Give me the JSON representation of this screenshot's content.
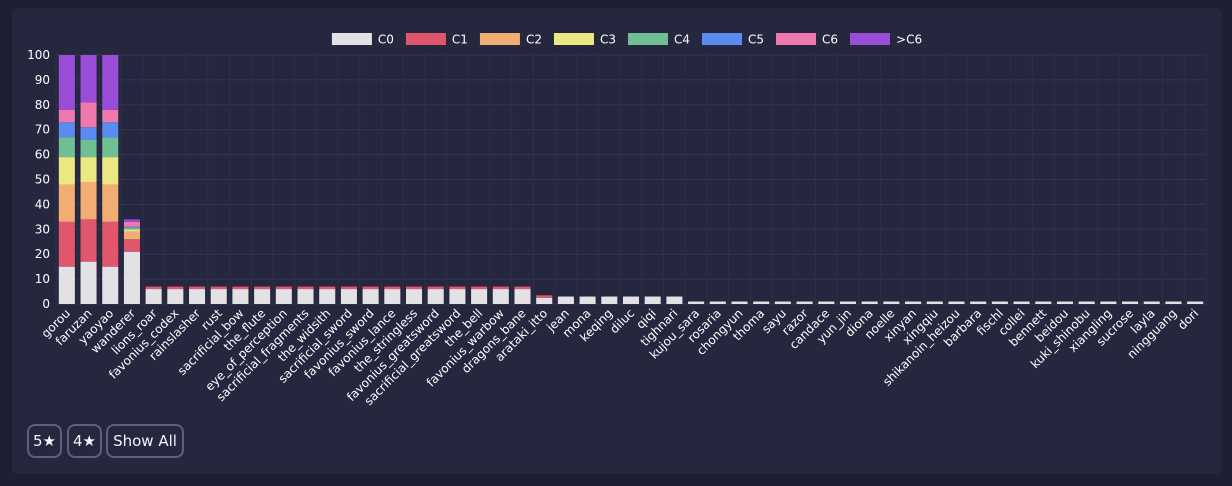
{
  "chart_data": {
    "type": "bar",
    "stacked": true,
    "ylim": [
      0,
      100
    ],
    "yticks": [
      0,
      10,
      20,
      30,
      40,
      50,
      60,
      70,
      80,
      90,
      100
    ],
    "grid": true,
    "legend_position": "top",
    "categories": [
      "gorou",
      "faruzan",
      "yaoyao",
      "wanderer",
      "lions_roar",
      "favonius_codex",
      "rainslasher",
      "rust",
      "sacrificial_bow",
      "the_flute",
      "eye_of_perception",
      "sacrificial_fragments",
      "the_widsith",
      "sacrificial_sword",
      "favonius_sword",
      "favonius_lance",
      "the_stringless",
      "favonius_greatsword",
      "sacrificial_greatsword",
      "the_bell",
      "favonius_warbow",
      "dragons_bane",
      "arataki_itto",
      "jean",
      "mona",
      "keqing",
      "diluc",
      "qiqi",
      "tighnari",
      "kujou_sara",
      "rosaria",
      "chongyun",
      "thoma",
      "sayu",
      "razor",
      "candace",
      "yun_jin",
      "diona",
      "noelle",
      "xinyan",
      "xingqiu",
      "shikanoin_heizou",
      "barbara",
      "fischl",
      "collei",
      "bennett",
      "beidou",
      "kuki_shinobu",
      "xiangling",
      "sucrose",
      "layla",
      "ningguang",
      "dori"
    ],
    "series": [
      {
        "name": "C0",
        "color": "#e1e1e6",
        "values": [
          15,
          17,
          15,
          21,
          6,
          6,
          6,
          6,
          6,
          6,
          6,
          6,
          6,
          6,
          6,
          6,
          6,
          6,
          6,
          6,
          6,
          6,
          2.5,
          3,
          3,
          3,
          3,
          3,
          3,
          1,
          1,
          1,
          1,
          1,
          1,
          1,
          1,
          1,
          1,
          1,
          1,
          1,
          1,
          1,
          1,
          1,
          1,
          1,
          1,
          1,
          1,
          1,
          1
        ]
      },
      {
        "name": "C1",
        "color": "#e0566c",
        "values": [
          18,
          17,
          18,
          5,
          1,
          1,
          1,
          1,
          1,
          1,
          1,
          1,
          1,
          1,
          1,
          1,
          1,
          1,
          1,
          1,
          1,
          1,
          1,
          0,
          0,
          0,
          0,
          0,
          0,
          0,
          0,
          0,
          0,
          0,
          0,
          0,
          0,
          0,
          0,
          0,
          0,
          0,
          0,
          0,
          0,
          0,
          0,
          0,
          0,
          0,
          0,
          0,
          0
        ]
      },
      {
        "name": "C2",
        "color": "#f2ad75",
        "values": [
          15,
          15,
          15,
          3,
          0,
          0,
          0,
          0,
          0,
          0,
          0,
          0,
          0,
          0,
          0,
          0,
          0,
          0,
          0,
          0,
          0,
          0,
          0,
          0,
          0,
          0,
          0,
          0,
          0,
          0,
          0,
          0,
          0,
          0,
          0,
          0,
          0,
          0,
          0,
          0,
          0,
          0,
          0,
          0,
          0,
          0,
          0,
          0,
          0,
          0,
          0,
          0,
          0
        ]
      },
      {
        "name": "C3",
        "color": "#ebe783",
        "values": [
          11,
          10,
          11,
          1,
          0,
          0,
          0,
          0,
          0,
          0,
          0,
          0,
          0,
          0,
          0,
          0,
          0,
          0,
          0,
          0,
          0,
          0,
          0,
          0,
          0,
          0,
          0,
          0,
          0,
          0,
          0,
          0,
          0,
          0,
          0,
          0,
          0,
          0,
          0,
          0,
          0,
          0,
          0,
          0,
          0,
          0,
          0,
          0,
          0,
          0,
          0,
          0,
          0
        ]
      },
      {
        "name": "C4",
        "color": "#6fbf95",
        "values": [
          8,
          7,
          8,
          0.5,
          0,
          0,
          0,
          0,
          0,
          0,
          0,
          0,
          0,
          0,
          0,
          0,
          0,
          0,
          0,
          0,
          0,
          0,
          0,
          0,
          0,
          0,
          0,
          0,
          0,
          0,
          0,
          0,
          0,
          0,
          0,
          0,
          0,
          0,
          0,
          0,
          0,
          0,
          0,
          0,
          0,
          0,
          0,
          0,
          0,
          0,
          0,
          0,
          0
        ]
      },
      {
        "name": "C5",
        "color": "#5b8af0",
        "values": [
          6,
          5,
          6,
          0.5,
          0,
          0,
          0,
          0,
          0,
          0,
          0,
          0,
          0,
          0,
          0,
          0,
          0,
          0,
          0,
          0,
          0,
          0,
          0,
          0,
          0,
          0,
          0,
          0,
          0,
          0,
          0,
          0,
          0,
          0,
          0,
          0,
          0,
          0,
          0,
          0,
          0,
          0,
          0,
          0,
          0,
          0,
          0,
          0,
          0,
          0,
          0,
          0,
          0
        ]
      },
      {
        "name": "C6",
        "color": "#ee79ad",
        "values": [
          5,
          10,
          5,
          2,
          0,
          0,
          0,
          0,
          0,
          0,
          0,
          0,
          0,
          0,
          0,
          0,
          0,
          0,
          0,
          0,
          0,
          0,
          0,
          0,
          0,
          0,
          0,
          0,
          0,
          0,
          0,
          0,
          0,
          0,
          0,
          0,
          0,
          0,
          0,
          0,
          0,
          0,
          0,
          0,
          0,
          0,
          0,
          0,
          0,
          0,
          0,
          0,
          0
        ]
      },
      {
        "name": ">C6",
        "color": "#9a4dd6",
        "values": [
          22,
          19,
          22,
          1,
          0,
          0,
          0,
          0,
          0,
          0,
          0,
          0,
          0,
          0,
          0,
          0,
          0,
          0,
          0,
          0,
          0,
          0,
          0,
          0,
          0,
          0,
          0,
          0,
          0,
          0,
          0,
          0,
          0,
          0,
          0,
          0,
          0,
          0,
          0,
          0,
          0,
          0,
          0,
          0,
          0,
          0,
          0,
          0,
          0,
          0,
          0,
          0,
          0
        ]
      }
    ]
  },
  "buttons": {
    "five_star": "5★",
    "four_star": "4★",
    "show_all": "Show All"
  }
}
